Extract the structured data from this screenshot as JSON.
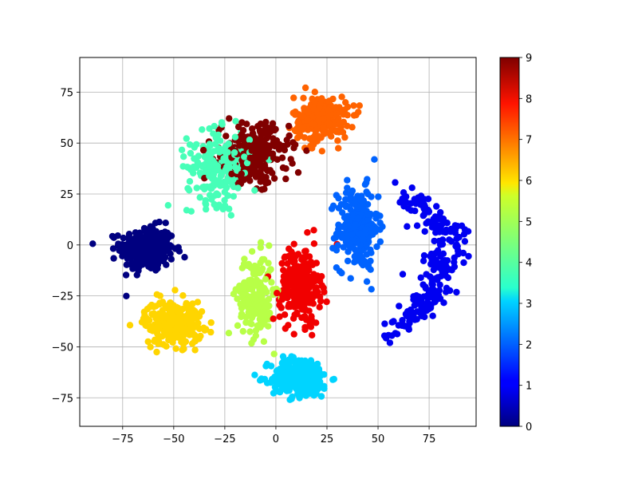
{
  "chart_data": {
    "type": "scatter",
    "title": "",
    "xlabel": "",
    "ylabel": "",
    "xlim": [
      -96,
      98
    ],
    "ylim": [
      -89,
      92
    ],
    "grid": true,
    "x_ticks": [
      -75,
      -50,
      -25,
      0,
      25,
      50,
      75
    ],
    "y_ticks": [
      -75,
      -50,
      -25,
      0,
      25,
      50,
      75
    ],
    "x_tick_labels": [
      "−75",
      "−50",
      "−25",
      "0",
      "25",
      "50",
      "75"
    ],
    "y_tick_labels": [
      "−75",
      "−50",
      "−25",
      "0",
      "25",
      "50",
      "75"
    ],
    "colormap": "jet",
    "colorbar": {
      "min": 0,
      "max": 9,
      "ticks": [
        0,
        1,
        2,
        3,
        4,
        5,
        6,
        7,
        8,
        9
      ],
      "tick_labels": [
        "0",
        "1",
        "2",
        "3",
        "4",
        "5",
        "6",
        "7",
        "8",
        "9"
      ]
    },
    "clusters": [
      {
        "label": 0,
        "center": [
          -63,
          -2
        ],
        "spread": [
          12,
          10
        ],
        "count": 320,
        "shape": "blob"
      },
      {
        "label": 1,
        "center": [
          72,
          -10
        ],
        "spread": [
          16,
          34
        ],
        "count": 260,
        "shape": "crescent"
      },
      {
        "label": 2,
        "center": [
          40,
          8
        ],
        "spread": [
          9,
          18
        ],
        "count": 260,
        "shape": "blob"
      },
      {
        "label": 3,
        "center": [
          12,
          -65
        ],
        "spread": [
          13,
          9
        ],
        "count": 260,
        "shape": "blob"
      },
      {
        "label": 4,
        "center": [
          -28,
          38
        ],
        "spread": [
          14,
          16
        ],
        "count": 220,
        "shape": "blob"
      },
      {
        "label": 5,
        "center": [
          -10,
          -25
        ],
        "spread": [
          8,
          18
        ],
        "count": 200,
        "shape": "blob"
      },
      {
        "label": 6,
        "center": [
          -50,
          -38
        ],
        "spread": [
          13,
          10
        ],
        "count": 280,
        "shape": "blob"
      },
      {
        "label": 7,
        "center": [
          22,
          62
        ],
        "spread": [
          12,
          10
        ],
        "count": 260,
        "shape": "blob"
      },
      {
        "label": 8,
        "center": [
          12,
          -20
        ],
        "spread": [
          9,
          17
        ],
        "count": 260,
        "shape": "blob"
      },
      {
        "label": 9,
        "center": [
          -10,
          45
        ],
        "spread": [
          15,
          13
        ],
        "count": 260,
        "shape": "blob"
      }
    ]
  }
}
